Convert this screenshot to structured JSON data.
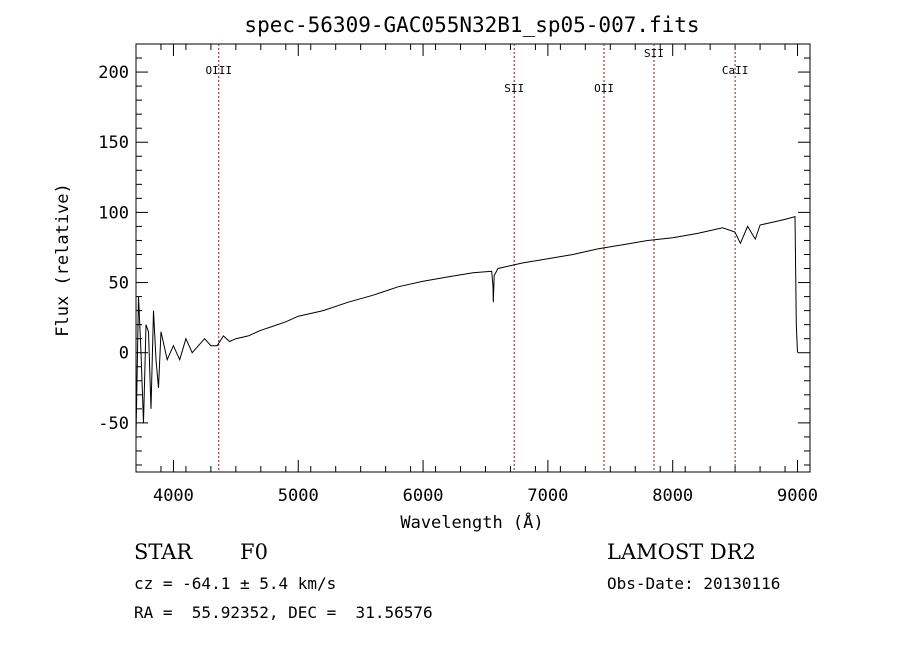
{
  "chart_data": {
    "type": "line",
    "title": "spec-56309-GAC055N32B1_sp05-007.fits",
    "xlabel": "Wavelength (Å)",
    "ylabel": "Flux (relative)",
    "xlim": [
      3700,
      9100
    ],
    "ylim": [
      -85,
      220
    ],
    "xticks": [
      "4000",
      "5000",
      "6000",
      "7000",
      "8000",
      "9000"
    ],
    "yticks": [
      "-50",
      "0",
      "50",
      "100",
      "150",
      "200"
    ],
    "grid": false,
    "series": [
      {
        "x": [
          3700,
          3720,
          3740,
          3760,
          3780,
          3800,
          3820,
          3840,
          3860,
          3880,
          3900,
          3950,
          4000,
          4050,
          4100,
          4150,
          4200,
          4250,
          4300,
          4350,
          4400,
          4450,
          4500,
          4600,
          4700,
          4800,
          4900,
          5000,
          5200,
          5400,
          5600,
          5800,
          6000,
          6200,
          6400,
          6550,
          6560,
          6563,
          6570,
          6600,
          6800,
          7000,
          7200,
          7400,
          7600,
          7800,
          8000,
          8200,
          8400,
          8498,
          8542,
          8600,
          8662,
          8700,
          8800,
          8900,
          8980,
          8990,
          9000
        ],
        "y": [
          -60,
          40,
          0,
          -50,
          20,
          15,
          -40,
          30,
          -5,
          -25,
          15,
          -5,
          5,
          -5,
          10,
          0,
          5,
          10,
          5,
          5,
          12,
          8,
          10,
          12,
          16,
          19,
          22,
          26,
          30,
          36,
          41,
          47,
          51,
          54,
          57,
          58,
          47,
          36,
          55,
          60,
          64,
          67,
          70,
          74,
          77,
          80,
          82,
          85,
          89,
          86,
          78,
          90,
          81,
          91,
          93,
          95,
          97,
          20,
          0
        ]
      }
    ],
    "lines": [
      {
        "label": "OIII",
        "x": 4363
      },
      {
        "label": "SII",
        "x": 6730
      },
      {
        "label": "OII",
        "x": 7450
      },
      {
        "label": "SII",
        "x": 7850
      },
      {
        "label": "CaII",
        "x": 8500
      }
    ]
  },
  "labels": {
    "object_class": "STAR",
    "subclass": "F0",
    "cz": "cz = -64.1 ± 5.4 km/s",
    "radec": "RA =  55.92352, DEC =  31.56576",
    "survey": "LAMOST DR2",
    "obs_date": "Obs-Date: 20130116"
  },
  "colors": {
    "line_marker": "#8b1a1a",
    "spectrum": "#000000"
  }
}
